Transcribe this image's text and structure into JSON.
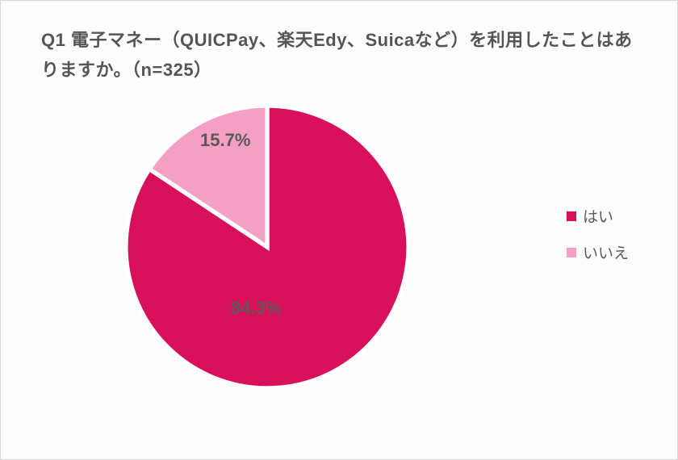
{
  "chart": {
    "type": "pie",
    "title": "Q1 電子マネー（QUICPay、楽天Edy、Suicaなど）を利用したことはありますか。（n=325）",
    "title_fontsize": 22,
    "title_color": "#555555",
    "background_color": "#fdfdfd",
    "slices": [
      {
        "label": "はい",
        "value": 84.3,
        "color": "#d8105b",
        "text": "84.3%"
      },
      {
        "label": "いいえ",
        "value": 15.7,
        "color": "#f49fc4",
        "text": "15.7%"
      }
    ],
    "slice_border_color": "#ffffff",
    "slice_border_width": 3,
    "start_angle_deg": -90,
    "label_fontsize": 22,
    "label_color": "#595959",
    "legend": {
      "position": "right",
      "fontsize": 19,
      "text_color": "#595959",
      "swatch_size": 12
    }
  }
}
